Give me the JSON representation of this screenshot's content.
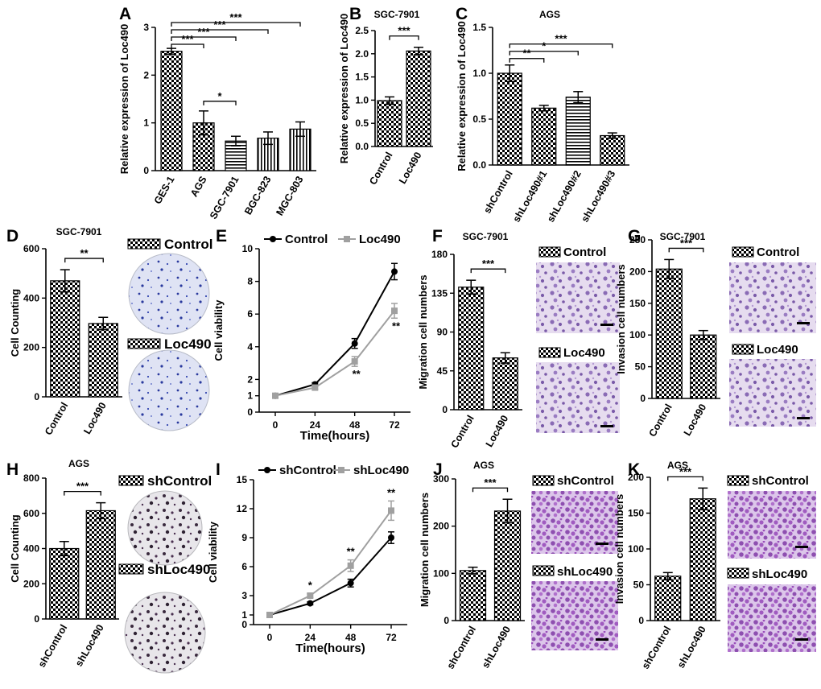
{
  "chart_data": [
    {
      "id": "A",
      "type": "bar",
      "panel_label": "A",
      "title": "",
      "ylabel": "Relative expression of Loc490",
      "categories": [
        "GES-1",
        "AGS",
        "SGC-7901",
        "BGC-823",
        "MGC-803"
      ],
      "values": [
        2.5,
        1.0,
        0.62,
        0.68,
        0.87
      ],
      "errors": [
        0.06,
        0.25,
        0.1,
        0.13,
        0.15
      ],
      "patterns": [
        "check",
        "check",
        "hstripe",
        "vstripe",
        "vstripe"
      ],
      "ylim": [
        0,
        3
      ],
      "yticks": [
        "0",
        "1",
        "2",
        "3"
      ],
      "significance": [
        {
          "from": 0,
          "to": 1,
          "label": "***"
        },
        {
          "from": 0,
          "to": 2,
          "label": "***"
        },
        {
          "from": 0,
          "to": 3,
          "label": "***"
        },
        {
          "from": 0,
          "to": 4,
          "label": "***"
        },
        {
          "from": 1,
          "to": 2,
          "label": "*"
        }
      ]
    },
    {
      "id": "B",
      "type": "bar",
      "panel_label": "B",
      "title": "SGC-7901",
      "ylabel": "Relative expression of Loc490",
      "categories": [
        "Control",
        "Loc490"
      ],
      "values": [
        0.99,
        2.06
      ],
      "errors": [
        0.08,
        0.08
      ],
      "patterns": [
        "check",
        "check"
      ],
      "ylim": [
        0,
        2.5
      ],
      "yticks": [
        "0.0",
        "0.5",
        "1.0",
        "1.5",
        "2.0",
        "2.5"
      ],
      "significance": [
        {
          "from": 0,
          "to": 1,
          "label": "***"
        }
      ]
    },
    {
      "id": "C",
      "type": "bar",
      "panel_label": "C",
      "title": "AGS",
      "ylabel": "Relative expression of Loc490",
      "categories": [
        "shControl",
        "shLoc490#1",
        "shLoc490#2",
        "shLoc490#3"
      ],
      "values": [
        1.0,
        0.62,
        0.74,
        0.32
      ],
      "errors": [
        0.09,
        0.03,
        0.06,
        0.03
      ],
      "patterns": [
        "check",
        "check",
        "hstripe",
        "check"
      ],
      "ylim": [
        0,
        1.5
      ],
      "yticks": [
        "0.0",
        "0.5",
        "1.0",
        "1.5"
      ],
      "significance": [
        {
          "from": 0,
          "to": 1,
          "label": "**"
        },
        {
          "from": 0,
          "to": 2,
          "label": "*"
        },
        {
          "from": 0,
          "to": 3,
          "label": "***"
        }
      ]
    },
    {
      "id": "D",
      "type": "bar",
      "panel_label": "D",
      "title": "SGC-7901",
      "ylabel": "Cell Counting",
      "categories": [
        "Control",
        "Loc490"
      ],
      "values": [
        470,
        297
      ],
      "errors": [
        45,
        25
      ],
      "patterns": [
        "check",
        "check"
      ],
      "ylim": [
        0,
        600
      ],
      "yticks": [
        "0",
        "200",
        "400",
        "600"
      ],
      "significance": [
        {
          "from": 0,
          "to": 1,
          "label": "**"
        }
      ],
      "legend": [
        "Control",
        "Loc490"
      ]
    },
    {
      "id": "E",
      "type": "line",
      "panel_label": "E",
      "title": "",
      "xlabel": "Time(hours)",
      "ylabel": "Cell viability",
      "x": [
        0,
        24,
        48,
        72
      ],
      "xticks": [
        "0",
        "24",
        "48",
        "72"
      ],
      "ylim": [
        0,
        10
      ],
      "yticks": [
        "0",
        "1",
        "2",
        "4",
        "6",
        "8",
        "10"
      ],
      "series": [
        {
          "name": "Control",
          "values": [
            1.0,
            1.7,
            4.2,
            8.6
          ],
          "errors": [
            0.05,
            0.1,
            0.3,
            0.5
          ],
          "color": "#000000"
        },
        {
          "name": "Loc490",
          "values": [
            1.0,
            1.5,
            3.1,
            6.2
          ],
          "errors": [
            0.05,
            0.1,
            0.3,
            0.45
          ],
          "color": "#a0a0a0"
        }
      ],
      "annotations": [
        {
          "x": 48,
          "label": "**"
        },
        {
          "x": 72,
          "label": "**"
        }
      ]
    },
    {
      "id": "F",
      "type": "bar",
      "panel_label": "F",
      "title": "SGC-7901",
      "ylabel": "Migration cell numbers",
      "categories": [
        "Control",
        "Loc490"
      ],
      "values": [
        142,
        60
      ],
      "errors": [
        8,
        6
      ],
      "patterns": [
        "check",
        "check"
      ],
      "ylim": [
        0,
        180
      ],
      "yticks": [
        "0",
        "45",
        "90",
        "135",
        "180"
      ],
      "significance": [
        {
          "from": 0,
          "to": 1,
          "label": "***"
        }
      ],
      "legend": [
        "Control",
        "Loc490"
      ]
    },
    {
      "id": "G",
      "type": "bar",
      "panel_label": "G",
      "title": "SGC-7901",
      "ylabel": "Invasion cell numbers",
      "categories": [
        "Control",
        "Loc490"
      ],
      "values": [
        204,
        100
      ],
      "errors": [
        15,
        7
      ],
      "patterns": [
        "check",
        "check"
      ],
      "ylim": [
        0,
        250
      ],
      "yticks": [
        "0",
        "50",
        "100",
        "150",
        "200",
        "250"
      ],
      "significance": [
        {
          "from": 0,
          "to": 1,
          "label": "***"
        }
      ],
      "legend": [
        "Control",
        "Loc490"
      ]
    },
    {
      "id": "H",
      "type": "bar",
      "panel_label": "H",
      "title": "AGS",
      "ylabel": "Cell Counting",
      "categories": [
        "shControl",
        "shLoc490"
      ],
      "values": [
        400,
        615
      ],
      "errors": [
        40,
        45
      ],
      "patterns": [
        "check",
        "check"
      ],
      "ylim": [
        0,
        800
      ],
      "yticks": [
        "0",
        "200",
        "400",
        "600",
        "800"
      ],
      "significance": [
        {
          "from": 0,
          "to": 1,
          "label": "***"
        }
      ],
      "legend": [
        "shControl",
        "shLoc490"
      ]
    },
    {
      "id": "I",
      "type": "line",
      "panel_label": "I",
      "title": "",
      "xlabel": "Time(hours)",
      "ylabel": "Cell viability",
      "x": [
        0,
        24,
        48,
        72
      ],
      "xticks": [
        "0",
        "24",
        "48",
        "72"
      ],
      "ylim": [
        0,
        15
      ],
      "yticks": [
        "0",
        "1",
        "3",
        "6",
        "9",
        "12",
        "15"
      ],
      "series": [
        {
          "name": "shControl",
          "values": [
            1.0,
            2.2,
            4.3,
            9.0
          ],
          "errors": [
            0.05,
            0.15,
            0.4,
            0.6
          ],
          "color": "#000000"
        },
        {
          "name": "shLoc490",
          "values": [
            1.0,
            3.0,
            6.1,
            11.8
          ],
          "errors": [
            0.05,
            0.2,
            0.6,
            1.0
          ],
          "color": "#a0a0a0"
        }
      ],
      "annotations": [
        {
          "x": 24,
          "label": "*"
        },
        {
          "x": 48,
          "label": "**"
        },
        {
          "x": 72,
          "label": "**"
        }
      ]
    },
    {
      "id": "J",
      "type": "bar",
      "panel_label": "J",
      "title": "AGS",
      "ylabel": "Migration cell numbers",
      "categories": [
        "shControl",
        "shLoc490"
      ],
      "values": [
        106,
        232
      ],
      "errors": [
        7,
        25
      ],
      "patterns": [
        "check",
        "check"
      ],
      "ylim": [
        0,
        300
      ],
      "yticks": [
        "0",
        "100",
        "200",
        "300"
      ],
      "significance": [
        {
          "from": 0,
          "to": 1,
          "label": "***"
        }
      ],
      "legend": [
        "shControl",
        "shLoc490"
      ]
    },
    {
      "id": "K",
      "type": "bar",
      "panel_label": "K",
      "title": "AGS",
      "ylabel": "Invasion cell numbers",
      "categories": [
        "shControl",
        "shLoc490"
      ],
      "values": [
        62,
        170
      ],
      "errors": [
        5,
        15
      ],
      "patterns": [
        "check",
        "check"
      ],
      "ylim": [
        0,
        200
      ],
      "yticks": [
        "0",
        "50",
        "100",
        "150",
        "200"
      ],
      "significance": [
        {
          "from": 0,
          "to": 1,
          "label": "***"
        }
      ],
      "legend": [
        "shControl",
        "shLoc490"
      ]
    }
  ]
}
